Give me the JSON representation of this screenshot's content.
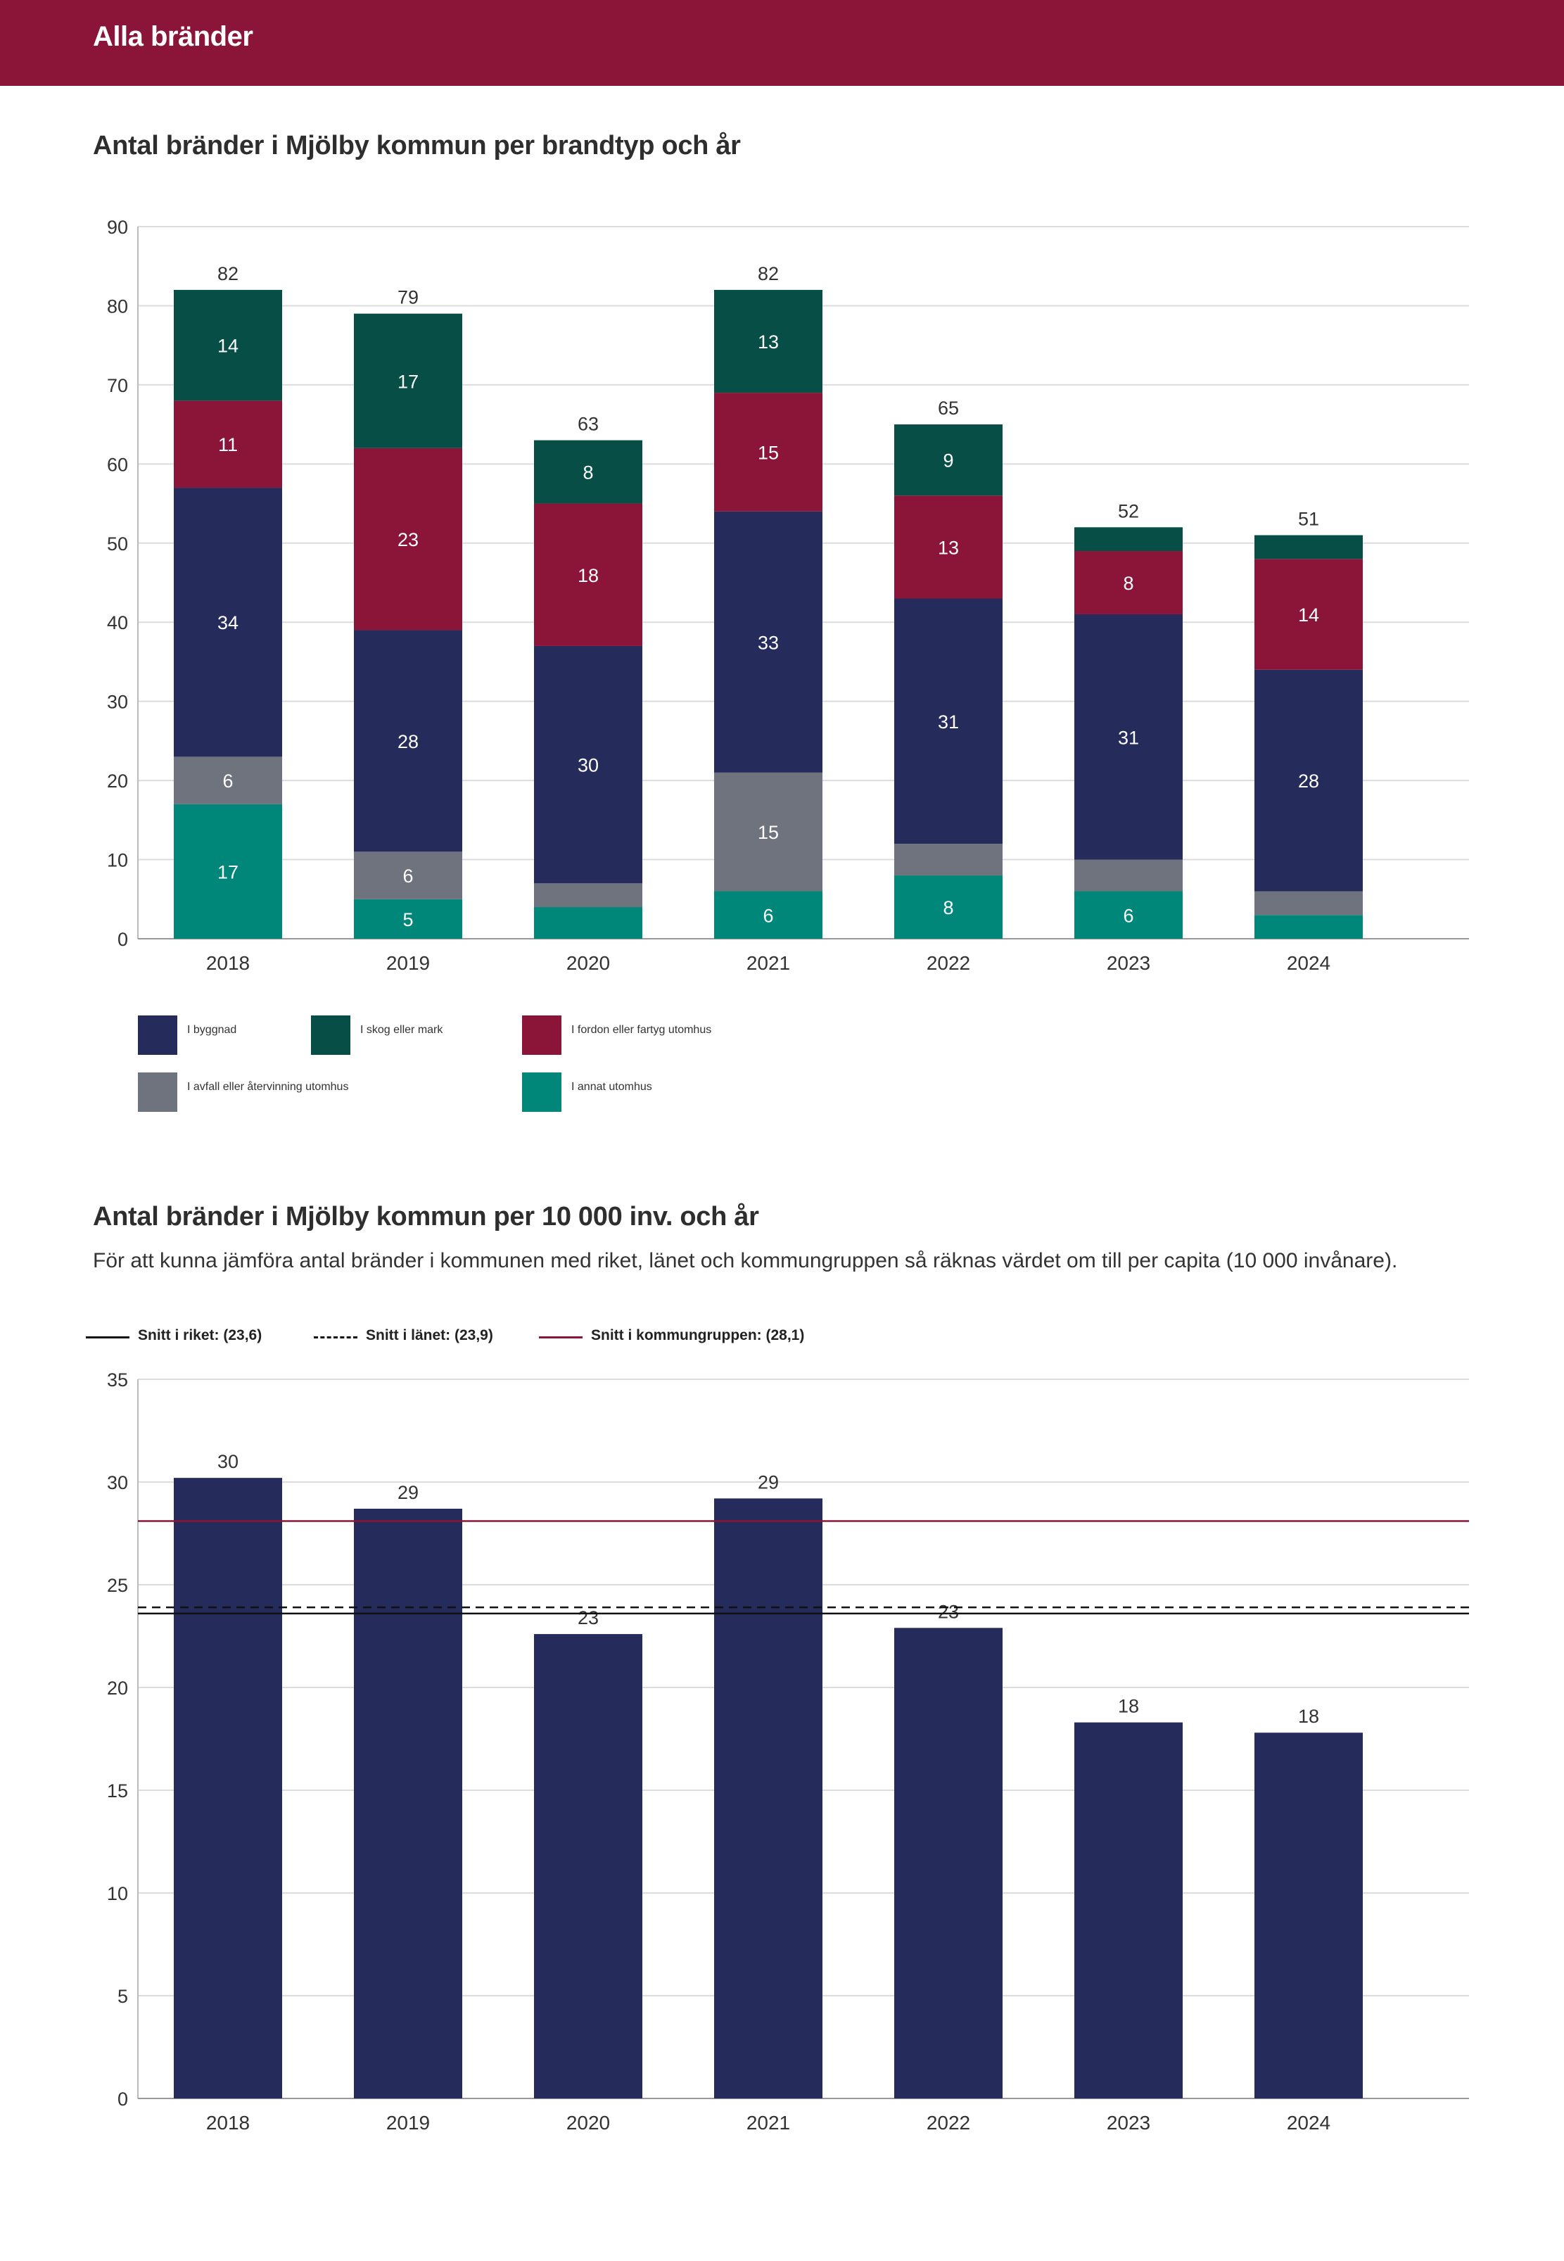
{
  "header": {
    "title": "Alla bränder"
  },
  "colors": {
    "header_bg": "#8b1538",
    "i_byggnad": "#252b5b",
    "i_skog": "#064e46",
    "i_fordon": "#8b1538",
    "i_avfall": "#6f737e",
    "i_annat": "#00877a",
    "ref_riket": "#111111",
    "ref_lanet": "#111111",
    "ref_kommungruppen": "#8b1538"
  },
  "chart1": {
    "title": "Antal bränder i Mjölby kommun per brandtyp och år",
    "legend": [
      {
        "key": "i_byggnad",
        "label": "I byggnad"
      },
      {
        "key": "i_skog",
        "label": "I skog eller mark"
      },
      {
        "key": "i_fordon",
        "label": "I fordon eller fartyg utomhus"
      },
      {
        "key": "i_avfall",
        "label": "I avfall eller återvinning utomhus"
      },
      {
        "key": "i_annat",
        "label": "I annat utomhus"
      }
    ]
  },
  "chart2": {
    "title": "Antal bränder i Mjölby kommun per 10 000 inv. och år",
    "subtitle": "För att kunna jämföra antal bränder i kommunen med riket, länet och kommungruppen så räknas värdet om till per capita (10 000 invånare).",
    "ref_legend": [
      {
        "key": "riket",
        "label": "Snitt i riket: (23,6)"
      },
      {
        "key": "lanet",
        "label": "Snitt i länet: (23,9)"
      },
      {
        "key": "kommungruppen",
        "label": "Snitt i kommungruppen: (28,1)"
      }
    ]
  },
  "chart_data": [
    {
      "type": "bar",
      "stacked": true,
      "title": "Antal bränder i Mjölby kommun per brandtyp och år",
      "categories": [
        "2018",
        "2019",
        "2020",
        "2021",
        "2022",
        "2023",
        "2024"
      ],
      "ylim": [
        0,
        90
      ],
      "yticks": [
        0,
        10,
        20,
        30,
        40,
        50,
        60,
        70,
        80,
        90
      ],
      "totals": [
        82,
        79,
        63,
        82,
        65,
        52,
        51
      ],
      "series": [
        {
          "key": "i_annat",
          "name": "I annat utomhus",
          "values": [
            17,
            5,
            4,
            6,
            8,
            6,
            3
          ],
          "labels": [
            "17",
            "5",
            "",
            "6",
            "8",
            "6",
            ""
          ]
        },
        {
          "key": "i_avfall",
          "name": "I avfall eller återvinning utomhus",
          "values": [
            6,
            6,
            3,
            15,
            4,
            4,
            3
          ],
          "labels": [
            "6",
            "6",
            "",
            "15",
            "",
            "",
            ""
          ]
        },
        {
          "key": "i_byggnad",
          "name": "I byggnad",
          "values": [
            34,
            28,
            30,
            33,
            31,
            31,
            28
          ],
          "labels": [
            "34",
            "28",
            "30",
            "33",
            "31",
            "31",
            "28"
          ]
        },
        {
          "key": "i_fordon",
          "name": "I fordon eller fartyg utomhus",
          "values": [
            11,
            23,
            18,
            15,
            13,
            8,
            14
          ],
          "labels": [
            "11",
            "23",
            "18",
            "15",
            "13",
            "8",
            "14"
          ]
        },
        {
          "key": "i_skog",
          "name": "I skog eller mark",
          "values": [
            14,
            17,
            8,
            13,
            9,
            3,
            3
          ],
          "labels": [
            "14",
            "17",
            "8",
            "13",
            "9",
            "",
            ""
          ]
        }
      ]
    },
    {
      "type": "bar",
      "title": "Antal bränder i Mjölby kommun per 10 000 inv. och år",
      "categories": [
        "2018",
        "2019",
        "2020",
        "2021",
        "2022",
        "2023",
        "2024"
      ],
      "values": [
        30.2,
        28.7,
        22.6,
        29.2,
        22.9,
        18.3,
        17.8
      ],
      "labels": [
        "30",
        "29",
        "23",
        "29",
        "23",
        "18",
        "18"
      ],
      "ylim": [
        0,
        35
      ],
      "yticks": [
        0,
        5,
        10,
        15,
        20,
        25,
        30,
        35
      ],
      "reference_lines": [
        {
          "key": "riket",
          "name": "Snitt i riket",
          "value": 23.6,
          "style": "solid"
        },
        {
          "key": "lanet",
          "name": "Snitt i länet",
          "value": 23.9,
          "style": "dashed"
        },
        {
          "key": "kommungruppen",
          "name": "Snitt i kommungruppen",
          "value": 28.1,
          "style": "solid"
        }
      ]
    }
  ]
}
